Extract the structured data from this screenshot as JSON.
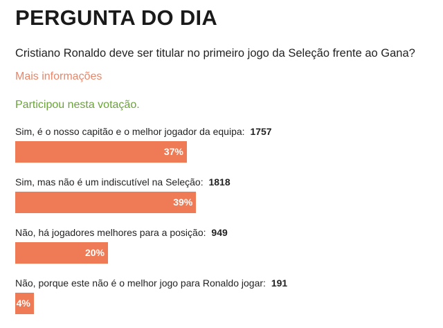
{
  "title": "PERGUNTA DO DIA",
  "question": "Cristiano Ronaldo deve ser titular no primeiro jogo da Seleção frente ao Gana?",
  "more_info_link": "Mais informações",
  "status": "Participou nesta votação.",
  "colors": {
    "bar": "#ee7b55",
    "link": "#e8866a",
    "status": "#6aa33a"
  },
  "options": [
    {
      "label": "Sim, é o nosso capitão e o melhor jogador da equipa:",
      "votes": "1757",
      "percent_label": "37%",
      "percent": 37
    },
    {
      "label": "Sim, mas não é um indiscutível na Seleção:",
      "votes": "1818",
      "percent_label": "39%",
      "percent": 39
    },
    {
      "label": "Não, há jogadores melhores para a posição:",
      "votes": "949",
      "percent_label": "20%",
      "percent": 20
    },
    {
      "label": "Não, porque este não é o melhor jogo para Ronaldo jogar:",
      "votes": "191",
      "percent_label": "4%",
      "percent": 4
    }
  ]
}
